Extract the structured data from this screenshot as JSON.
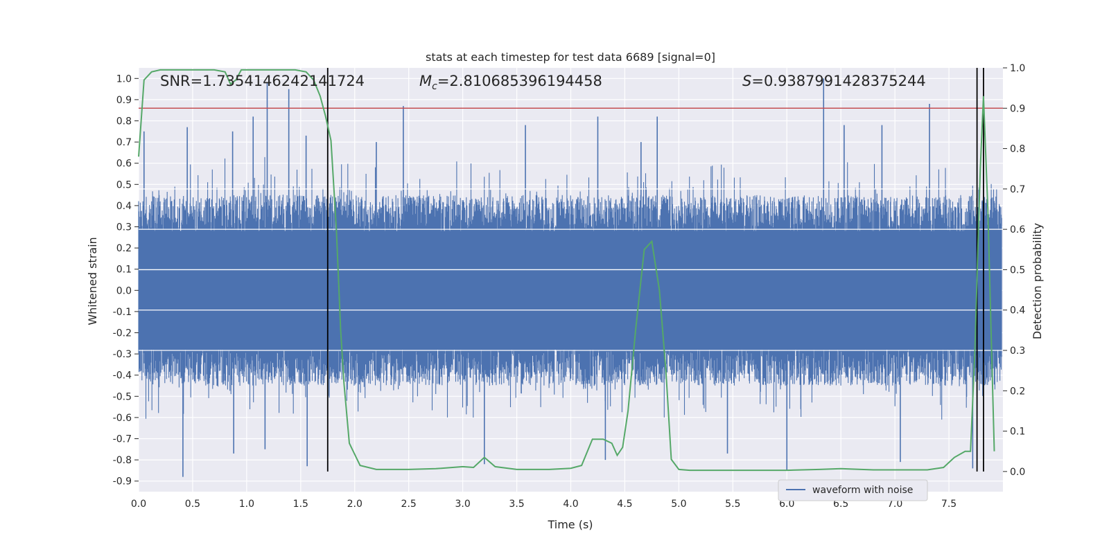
{
  "chart_data": {
    "type": "line",
    "title": "stats at each timestep for test data 6689 [signal=0]",
    "xlabel": "Time (s)",
    "ylabel_left": "Whitened strain",
    "ylabel_right": "Detection probability",
    "xlim": [
      0.0,
      8.0
    ],
    "ylim_left": [
      -0.95,
      1.05
    ],
    "ylim_right": [
      -0.05,
      1.0
    ],
    "x_ticks": [
      "0.0",
      "0.5",
      "1.0",
      "1.5",
      "2.0",
      "2.5",
      "3.0",
      "3.5",
      "4.0",
      "4.5",
      "5.0",
      "5.5",
      "6.0",
      "6.5",
      "7.0",
      "7.5"
    ],
    "y_ticks_left": [
      "1.0",
      "0.9",
      "0.8",
      "0.7",
      "0.6",
      "0.5",
      "0.4",
      "0.3",
      "0.2",
      "0.1",
      "0.0",
      "-0.1",
      "-0.2",
      "-0.3",
      "-0.4",
      "-0.5",
      "-0.6",
      "-0.7",
      "-0.8",
      "-0.9"
    ],
    "y_ticks_right": [
      "1.0",
      "0.9",
      "0.8",
      "0.7",
      "0.6",
      "0.5",
      "0.4",
      "0.3",
      "0.2",
      "0.1",
      "0.0"
    ],
    "annotations": {
      "snr": "SNR=1.7354146242141724",
      "mc_symbol": "M",
      "mc_sub": "c",
      "mc_value": "=2.810685396194458",
      "s_symbol": "S",
      "s_value": "=0.9387991428375244"
    },
    "threshold_right": 0.9,
    "vertical_lines_x": [
      1.75,
      7.76,
      7.82
    ],
    "legend": [
      "waveform with noise"
    ],
    "series": [
      {
        "name": "waveform with noise",
        "color": "#4c72b0",
        "description": "dense whitened strain noise spanning 0 to 8 s",
        "envelope_typical": [
          -0.45,
          0.45
        ],
        "envelope_extreme": [
          -0.88,
          0.98
        ],
        "spikes_top": [
          [
            0.05,
            0.75
          ],
          [
            0.45,
            0.77
          ],
          [
            0.87,
            0.75
          ],
          [
            1.06,
            0.82
          ],
          [
            1.19,
            0.98
          ],
          [
            1.39,
            0.95
          ],
          [
            1.55,
            0.73
          ],
          [
            2.2,
            0.7
          ],
          [
            2.45,
            0.87
          ],
          [
            3.58,
            0.78
          ],
          [
            4.25,
            0.82
          ],
          [
            4.65,
            0.7
          ],
          [
            4.8,
            0.82
          ],
          [
            6.34,
            1.0
          ],
          [
            6.53,
            0.78
          ],
          [
            6.88,
            0.78
          ],
          [
            7.32,
            0.88
          ]
        ],
        "spikes_bottom": [
          [
            0.41,
            -0.88
          ],
          [
            0.88,
            -0.77
          ],
          [
            1.17,
            -0.75
          ],
          [
            1.56,
            -0.83
          ],
          [
            3.2,
            -0.82
          ],
          [
            4.32,
            -0.8
          ],
          [
            5.45,
            -0.77
          ],
          [
            6.0,
            -0.85
          ],
          [
            7.05,
            -0.81
          ],
          [
            7.72,
            -0.84
          ]
        ]
      },
      {
        "name": "detection probability",
        "color": "#55a868",
        "axis": "right",
        "x": [
          0.0,
          0.05,
          0.12,
          0.2,
          0.3,
          0.5,
          0.6,
          0.7,
          0.8,
          0.85,
          0.9,
          0.95,
          1.0,
          1.05,
          1.1,
          1.2,
          1.3,
          1.45,
          1.55,
          1.62,
          1.68,
          1.73,
          1.78,
          1.83,
          1.87,
          1.9,
          1.95,
          2.05,
          2.2,
          2.5,
          2.75,
          3.0,
          3.1,
          3.2,
          3.3,
          3.5,
          3.8,
          4.0,
          4.1,
          4.2,
          4.3,
          4.38,
          4.43,
          4.48,
          4.53,
          4.6,
          4.68,
          4.75,
          4.82,
          4.88,
          4.93,
          5.0,
          5.1,
          5.5,
          6.0,
          6.3,
          6.5,
          6.6,
          6.8,
          7.0,
          7.3,
          7.45,
          7.55,
          7.65,
          7.7,
          7.74,
          7.79,
          7.82,
          7.86,
          7.92
        ],
        "y": [
          0.78,
          0.97,
          0.99,
          0.995,
          0.995,
          0.995,
          0.995,
          0.995,
          0.99,
          0.96,
          0.97,
          0.995,
          0.995,
          0.995,
          0.995,
          0.995,
          0.995,
          0.995,
          0.99,
          0.97,
          0.93,
          0.88,
          0.82,
          0.6,
          0.35,
          0.22,
          0.07,
          0.015,
          0.005,
          0.005,
          0.007,
          0.012,
          0.01,
          0.035,
          0.012,
          0.005,
          0.005,
          0.008,
          0.015,
          0.08,
          0.08,
          0.07,
          0.04,
          0.06,
          0.15,
          0.35,
          0.55,
          0.57,
          0.45,
          0.25,
          0.03,
          0.005,
          0.003,
          0.003,
          0.003,
          0.005,
          0.007,
          0.006,
          0.004,
          0.004,
          0.004,
          0.01,
          0.035,
          0.05,
          0.05,
          0.3,
          0.75,
          0.93,
          0.65,
          0.05
        ]
      }
    ]
  }
}
